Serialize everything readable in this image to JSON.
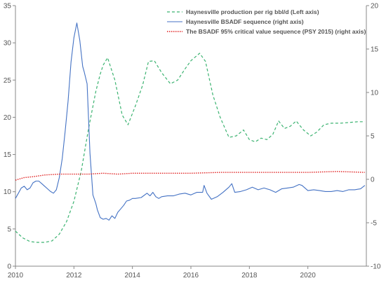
{
  "chart_data": {
    "type": "line",
    "grid": false,
    "legend_placement": "top-right",
    "x_axis": {
      "min": 2010,
      "max": 2022,
      "ticks": [
        2010,
        2012,
        2014,
        2016,
        2018,
        2020
      ]
    },
    "y_left": {
      "min": 0,
      "max": 35,
      "ticks": [
        0,
        5,
        10,
        15,
        20,
        25,
        30,
        35
      ]
    },
    "y_right": {
      "min": -10,
      "max": 20,
      "ticks": [
        -10,
        -5,
        0,
        5,
        10,
        15,
        20
      ]
    },
    "colors": {
      "production": "#3cb371",
      "bsadf": "#4472c4",
      "critical": "#e02020",
      "axis": "#888888"
    },
    "series": [
      {
        "name": "Haynesville production per rig bbl/d (Left axis)",
        "axis": "left",
        "style": "dashed",
        "x": [
          2010.0,
          2010.25,
          2010.5,
          2010.75,
          2011.0,
          2011.25,
          2011.5,
          2011.75,
          2012.0,
          2012.25,
          2012.5,
          2012.75,
          2012.9,
          2013.0,
          2013.15,
          2013.4,
          2013.65,
          2013.85,
          2014.1,
          2014.35,
          2014.55,
          2014.75,
          2015.0,
          2015.3,
          2015.55,
          2015.8,
          2016.0,
          2016.3,
          2016.5,
          2016.75,
          2017.0,
          2017.3,
          2017.55,
          2017.8,
          2018.0,
          2018.2,
          2018.4,
          2018.6,
          2018.8,
          2019.0,
          2019.2,
          2019.4,
          2019.6,
          2019.85,
          2020.1,
          2020.3,
          2020.55,
          2020.8,
          2021.1,
          2021.4,
          2021.7,
          2021.95
        ],
        "values": [
          4.7,
          3.8,
          3.3,
          3.2,
          3.2,
          3.4,
          4.3,
          6.0,
          8.7,
          12.8,
          18.5,
          23.5,
          25.8,
          27.0,
          28.0,
          25.0,
          20.3,
          19.0,
          21.5,
          24.3,
          27.5,
          27.6,
          26.0,
          24.5,
          25.0,
          26.5,
          27.6,
          28.6,
          27.5,
          23.0,
          20.0,
          17.3,
          17.5,
          18.3,
          17.0,
          16.7,
          17.2,
          17.0,
          17.7,
          19.5,
          18.5,
          18.8,
          19.5,
          18.3,
          17.5,
          18.0,
          19.0,
          19.2,
          19.2,
          19.3,
          19.4,
          19.4
        ]
      },
      {
        "name": "Haynesville BSADF sequence (right axis)",
        "axis": "right",
        "style": "solid",
        "x": [
          2010.0,
          2010.1,
          2010.2,
          2010.3,
          2010.4,
          2010.5,
          2010.6,
          2010.7,
          2010.8,
          2010.9,
          2011.0,
          2011.1,
          2011.2,
          2011.3,
          2011.4,
          2011.5,
          2011.6,
          2011.7,
          2011.8,
          2011.9,
          2012.0,
          2012.1,
          2012.2,
          2012.3,
          2012.35,
          2012.45,
          2012.55,
          2012.65,
          2012.75,
          2012.8,
          2012.9,
          2013.0,
          2013.1,
          2013.2,
          2013.3,
          2013.4,
          2013.5,
          2013.6,
          2013.7,
          2013.8,
          2013.9,
          2014.0,
          2014.1,
          2014.3,
          2014.5,
          2014.6,
          2014.7,
          2014.8,
          2014.9,
          2015.0,
          2015.2,
          2015.4,
          2015.6,
          2015.8,
          2016.0,
          2016.2,
          2016.4,
          2016.45,
          2016.55,
          2016.7,
          2016.9,
          2017.1,
          2017.3,
          2017.4,
          2017.5,
          2017.7,
          2017.9,
          2018.1,
          2018.3,
          2018.5,
          2018.7,
          2018.9,
          2019.1,
          2019.3,
          2019.5,
          2019.7,
          2019.8,
          2020.0,
          2020.2,
          2020.4,
          2020.6,
          2020.8,
          2021.0,
          2021.2,
          2021.4,
          2021.6,
          2021.8,
          2021.95
        ],
        "values": [
          -2.2,
          -1.6,
          -1.0,
          -0.8,
          -1.2,
          -1.0,
          -0.4,
          -0.2,
          -0.2,
          -0.5,
          -0.8,
          -1.1,
          -1.4,
          -1.6,
          -1.2,
          0.2,
          2.4,
          5.5,
          9.0,
          13.5,
          16.3,
          18.0,
          16.0,
          13.0,
          12.4,
          11.0,
          3.0,
          -1.8,
          -2.8,
          -3.5,
          -4.4,
          -4.6,
          -4.5,
          -4.7,
          -4.2,
          -4.5,
          -3.8,
          -3.4,
          -3.0,
          -2.5,
          -2.4,
          -2.2,
          -2.2,
          -2.1,
          -1.6,
          -1.9,
          -1.5,
          -2.0,
          -2.2,
          -2.0,
          -1.9,
          -1.9,
          -1.7,
          -1.6,
          -1.8,
          -1.5,
          -1.5,
          -0.7,
          -1.6,
          -2.3,
          -2.0,
          -1.5,
          -0.9,
          -0.5,
          -1.5,
          -1.4,
          -1.2,
          -0.9,
          -1.2,
          -1.0,
          -1.2,
          -1.5,
          -1.1,
          -1.0,
          -0.9,
          -0.6,
          -0.7,
          -1.3,
          -1.2,
          -1.3,
          -1.4,
          -1.4,
          -1.3,
          -1.4,
          -1.2,
          -1.2,
          -1.1,
          -0.7
        ]
      },
      {
        "name": "The BSADF 95% critical value sequence (PSY 2015)  (right axis)",
        "axis": "right",
        "style": "dotted",
        "x": [
          2010.0,
          2010.3,
          2010.6,
          2011.0,
          2011.5,
          2012.0,
          2012.5,
          2013.0,
          2013.5,
          2014.0,
          2015.0,
          2016.0,
          2017.0,
          2018.0,
          2019.0,
          2020.0,
          2021.0,
          2021.95
        ],
        "values": [
          -0.1,
          0.2,
          0.3,
          0.5,
          0.6,
          0.6,
          0.6,
          0.7,
          0.6,
          0.7,
          0.7,
          0.7,
          0.8,
          0.8,
          0.8,
          0.8,
          0.9,
          0.8
        ]
      }
    ]
  }
}
